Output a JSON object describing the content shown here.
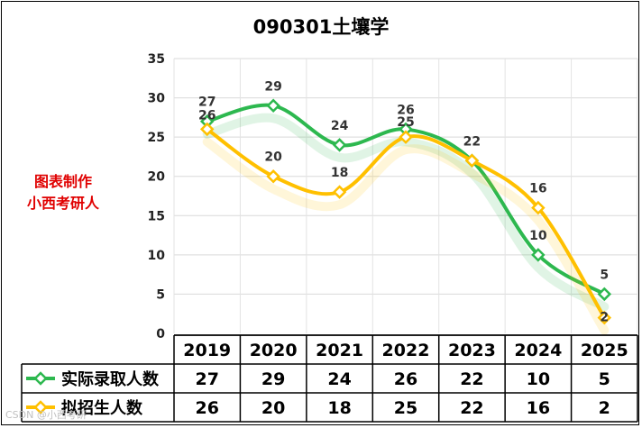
{
  "page_title": "090301土壤学",
  "side_label": [
    "图表制作",
    "小西考研人"
  ],
  "watermark": "CSDN @小西考研",
  "chart_data": {
    "type": "line",
    "title": "090301土壤学",
    "categories": [
      "2019",
      "2020",
      "2021",
      "2022",
      "2023",
      "2024",
      "2025"
    ],
    "series": [
      {
        "name": "实际录取人数",
        "color": "#2db84f",
        "values": [
          27,
          29,
          24,
          26,
          22,
          10,
          5
        ]
      },
      {
        "name": "拟招生人数",
        "color": "#ffc000",
        "values": [
          26,
          20,
          18,
          25,
          22,
          16,
          2
        ]
      }
    ],
    "ylim": [
      0,
      35
    ],
    "yticks": [
      0,
      5,
      10,
      15,
      20,
      25,
      30,
      35
    ],
    "grid": true,
    "smooth": true,
    "legend": "data-table below chart"
  }
}
